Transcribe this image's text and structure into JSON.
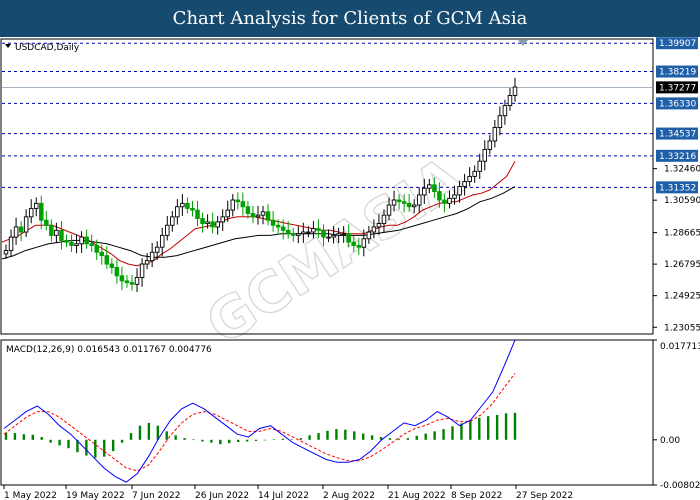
{
  "header": {
    "title": "Chart Analysis for Clients of GCM Asia"
  },
  "chart_data": [
    {
      "type": "candlestick",
      "title": "USDCAD,Daily",
      "y_ticks": [
        1.2305,
        1.24925,
        1.26795,
        1.28665,
        1.3059,
        1.3246
      ],
      "y_tick_labels": [
        "1.23055",
        "1.24925",
        "1.26795",
        "1.28665",
        "1.30590",
        "1.32460"
      ],
      "ylim": [
        1.2265,
        1.4015
      ],
      "x_labels": [
        "1 May 2022",
        "19 May 2022",
        "7 Jun 2022",
        "26 Jun 2022",
        "14 Jul 2022",
        "2 Aug 2022",
        "21 Aug 2022",
        "8 Sep 2022",
        "27 Sep 2022"
      ],
      "levels": [
        {
          "value": 1.399,
          "label": "1.39907"
        },
        {
          "value": 1.3822,
          "label": "1.38219"
        },
        {
          "value": 1.3633,
          "label": "1.36330"
        },
        {
          "value": 1.3454,
          "label": "1.34537"
        },
        {
          "value": 1.3322,
          "label": "1.33216"
        },
        {
          "value": 1.3135,
          "label": "1.31352"
        }
      ],
      "current_price": {
        "value": 1.3728,
        "label": "1.37277"
      },
      "closes": [
        1.276,
        1.284,
        1.29,
        1.287,
        1.296,
        1.301,
        1.304,
        1.294,
        1.291,
        1.285,
        1.288,
        1.282,
        1.281,
        1.279,
        1.28,
        1.284,
        1.28,
        1.279,
        1.275,
        1.273,
        1.268,
        1.266,
        1.261,
        1.258,
        1.257,
        1.256,
        1.26,
        1.268,
        1.27,
        1.275,
        1.278,
        1.285,
        1.291,
        1.296,
        1.302,
        1.304,
        1.301,
        1.3,
        1.295,
        1.292,
        1.293,
        1.29,
        1.293,
        1.296,
        1.3,
        1.306,
        1.305,
        1.302,
        1.298,
        1.296,
        1.297,
        1.299,
        1.294,
        1.291,
        1.29,
        1.288,
        1.286,
        1.285,
        1.286,
        1.287,
        1.287,
        1.289,
        1.288,
        1.284,
        1.284,
        1.285,
        1.286,
        1.286,
        1.281,
        1.279,
        1.278,
        1.283,
        1.287,
        1.29,
        1.292,
        1.297,
        1.303,
        1.306,
        1.305,
        1.304,
        1.302,
        1.303,
        1.309,
        1.313,
        1.315,
        1.311,
        1.306,
        1.304,
        1.307,
        1.309,
        1.314,
        1.317,
        1.32,
        1.323,
        1.329,
        1.336,
        1.341,
        1.349,
        1.356,
        1.362,
        1.368,
        1.373
      ],
      "ma_red": [
        1.281,
        1.283,
        1.285,
        1.288,
        1.291,
        1.291,
        1.291,
        1.289,
        1.287,
        1.285,
        1.283,
        1.28,
        1.277,
        1.274,
        1.27,
        1.268,
        1.267,
        1.268,
        1.27,
        1.274,
        1.277,
        1.281,
        1.285,
        1.289,
        1.29,
        1.291,
        1.293,
        1.295,
        1.296,
        1.296,
        1.296,
        1.295,
        1.294,
        1.293,
        1.292,
        1.291,
        1.29,
        1.289,
        1.288,
        1.288,
        1.287,
        1.286,
        1.286,
        1.286,
        1.288,
        1.29,
        1.291,
        1.291,
        1.293,
        1.296,
        1.3,
        1.302,
        1.304,
        1.305,
        1.305,
        1.307,
        1.309,
        1.31,
        1.312,
        1.316,
        1.32,
        1.329
      ],
      "ma_black": [
        1.271,
        1.273,
        1.276,
        1.278,
        1.28,
        1.281,
        1.282,
        1.282,
        1.281,
        1.28,
        1.278,
        1.276,
        1.273,
        1.272,
        1.272,
        1.273,
        1.275,
        1.277,
        1.279,
        1.281,
        1.283,
        1.284,
        1.285,
        1.285,
        1.286,
        1.286,
        1.286,
        1.286,
        1.286,
        1.285,
        1.285,
        1.285,
        1.286,
        1.287,
        1.288,
        1.29,
        1.292,
        1.294,
        1.296,
        1.298,
        1.301,
        1.305,
        1.307,
        1.31,
        1.314
      ],
      "colors": {
        "bull": "#000000",
        "bear": "#00a000",
        "ma_red": "#c00000",
        "ma_black": "#000000",
        "level": "#0000c0",
        "label_bg": "#1f5fa8",
        "current_bg": "#000000",
        "banner": "#164a6e"
      }
    },
    {
      "type": "macd",
      "title": "MACD(12,26,9) 0.016543 0.011767 0.004776",
      "y_tick_labels": [
        "0.017713",
        "0.00",
        "-0.008021"
      ],
      "ylim": [
        -0.008021,
        0.017713
      ],
      "macd_line": [
        0.002,
        0.0035,
        0.005,
        0.006,
        0.0045,
        0.0025,
        0.001,
        -0.001,
        -0.003,
        -0.005,
        -0.0065,
        -0.0075,
        -0.006,
        -0.003,
        0.0005,
        0.0035,
        0.0055,
        0.0065,
        0.0055,
        0.004,
        0.0025,
        0.001,
        0.0005,
        0.002,
        0.0025,
        0.001,
        -0.0005,
        -0.0015,
        -0.0025,
        -0.0035,
        -0.004,
        -0.004,
        -0.0035,
        -0.002,
        0,
        0.0015,
        0.003,
        0.0025,
        0.0035,
        0.005,
        0.004,
        0.0025,
        0.0035,
        0.006,
        0.0085,
        0.013,
        0.0177
      ],
      "signal_line": [
        0.001,
        0.0025,
        0.004,
        0.005,
        0.005,
        0.004,
        0.0025,
        0.001,
        -0.0005,
        -0.002,
        -0.0035,
        -0.005,
        -0.0055,
        -0.0045,
        -0.002,
        0.0008,
        0.003,
        0.0045,
        0.005,
        0.0045,
        0.0035,
        0.0025,
        0.0015,
        0.0015,
        0.002,
        0.0015,
        0.0005,
        -0.0005,
        -0.0015,
        -0.0025,
        -0.0032,
        -0.0037,
        -0.0037,
        -0.003,
        -0.0018,
        -0.0004,
        0.001,
        0.002,
        0.0026,
        0.0035,
        0.0038,
        0.0032,
        0.0033,
        0.0045,
        0.0065,
        0.0092,
        0.0118
      ],
      "histogram": [
        0.0013,
        0.0012,
        0.001,
        0.0009,
        0.0005,
        -0.0005,
        -0.001,
        -0.0015,
        -0.0022,
        -0.0028,
        -0.0032,
        -0.003,
        -0.002,
        -0.0005,
        0.0012,
        0.0025,
        0.003,
        0.0025,
        0.0015,
        0.0008,
        0.0003,
        0.0001,
        -0.0003,
        -0.0005,
        -0.0008,
        -0.0006,
        -0.0004,
        -0.0003,
        -0.0002,
        -0.0001,
        0.0001,
        0.0002,
        0.0001,
        0.0003,
        0.0008,
        0.0012,
        0.0016,
        0.0019,
        0.0018,
        0.0015,
        0.0011,
        0.0008,
        0.0005,
        0.0003,
        0.0002,
        0.0003,
        0.0007,
        0.0011,
        0.0015,
        0.0019,
        0.0024,
        0.0029,
        0.0034,
        0.0039,
        0.0042,
        0.0044,
        0.0047,
        0.0048
      ],
      "colors": {
        "macd": "#0000ff",
        "signal": "#ff0000",
        "histogram": "#008000"
      }
    }
  ],
  "watermark": "GCMASIA"
}
